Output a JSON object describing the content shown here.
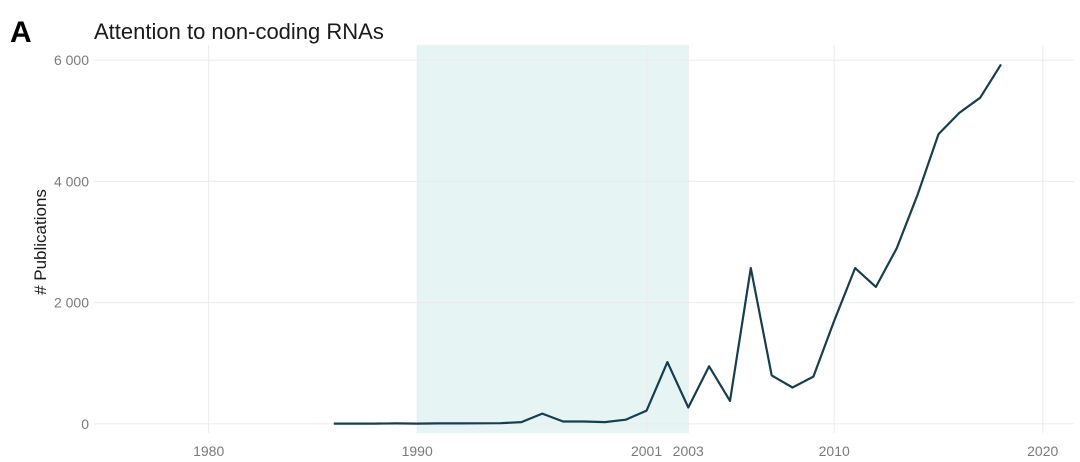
{
  "panel_label": "A",
  "chart_data": {
    "type": "line",
    "title": "Attention to non-coding RNAs",
    "xlabel": "",
    "ylabel": "# Publications",
    "xlim": [
      1974.5,
      2021.5
    ],
    "ylim": [
      -150,
      6250
    ],
    "x_ticks": [
      1980,
      1990,
      2001,
      2003,
      2010,
      2020
    ],
    "y_ticks": [
      0,
      2000,
      4000,
      6000
    ],
    "y_tick_labels": [
      "0",
      "2 000",
      "4 000",
      "6 000"
    ],
    "grid": true,
    "highlight_band": {
      "x_start": 1990,
      "x_end": 2003,
      "color": "#e6f4f4"
    },
    "line_color": "#163e4e",
    "series": [
      {
        "x": [
          1986,
          1987,
          1988,
          1989,
          1990,
          1991,
          1992,
          1993,
          1994,
          1995,
          1996,
          1997,
          1998,
          1999,
          2000,
          2001,
          2002,
          2003,
          2004,
          2005,
          2006,
          2007,
          2008,
          2009,
          2010,
          2011,
          2012,
          2013,
          2014,
          2015,
          2016,
          2017,
          2018
        ],
        "values": [
          5,
          5,
          5,
          8,
          5,
          8,
          8,
          10,
          12,
          30,
          170,
          40,
          40,
          30,
          70,
          220,
          1020,
          270,
          950,
          380,
          2570,
          800,
          600,
          780,
          1700,
          2570,
          2260,
          2900,
          3780,
          4780,
          5130,
          5380,
          5930
        ]
      }
    ]
  }
}
